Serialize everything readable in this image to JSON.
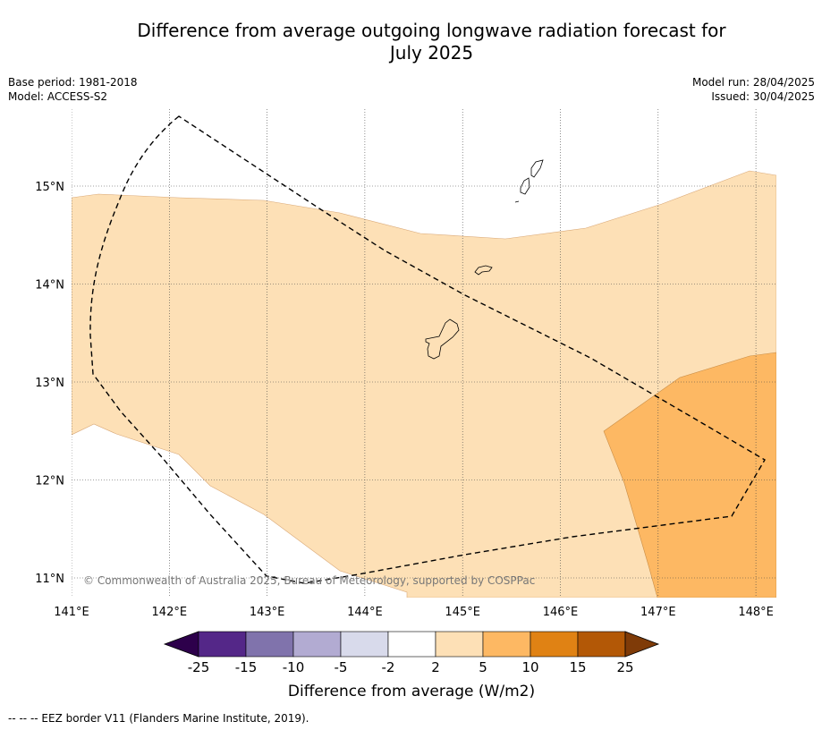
{
  "title": {
    "line1": "Difference from average outgoing longwave radiation forecast for",
    "line2": "July 2025"
  },
  "meta": {
    "base_period": "Base period: 1981-2018",
    "model": "Model: ACCESS-S2",
    "model_run": "Model run: 28/04/2025",
    "issued": "Issued: 30/04/2025"
  },
  "map": {
    "lon_range": [
      141,
      148.2
    ],
    "lat_range": [
      10.8,
      15.8
    ],
    "lon_ticks": [
      "141°E",
      "142°E",
      "143°E",
      "144°E",
      "145°E",
      "146°E",
      "147°E",
      "148°E"
    ],
    "lat_ticks": [
      "11°N",
      "12°N",
      "13°N",
      "14°N",
      "15°N"
    ],
    "copyright": "© Commonwealth of Australia 2025, Bureau of Meteorology, supported by COSPPac",
    "anomaly_regions": [
      {
        "category": "2 to 5",
        "color": "#fde0b6"
      },
      {
        "category": "5 to 10",
        "color": "#fdb863"
      }
    ],
    "eez_border": "dashed-black"
  },
  "colorbar": {
    "label": "Difference from average (W/m2)",
    "ticks": [
      "-25",
      "-15",
      "-10",
      "-5",
      "-2",
      "2",
      "5",
      "10",
      "15",
      "25"
    ],
    "under_color": "#2d004b",
    "over_color": "#7f3b08",
    "colors": [
      "#542788",
      "#8073ac",
      "#b2abd2",
      "#d8daeb",
      "#ffffff",
      "#fde0b6",
      "#fdb863",
      "#e08214",
      "#b35806"
    ]
  },
  "footer": "--  --  -- EEZ border V11 (Flanders Marine Institute, 2019)."
}
